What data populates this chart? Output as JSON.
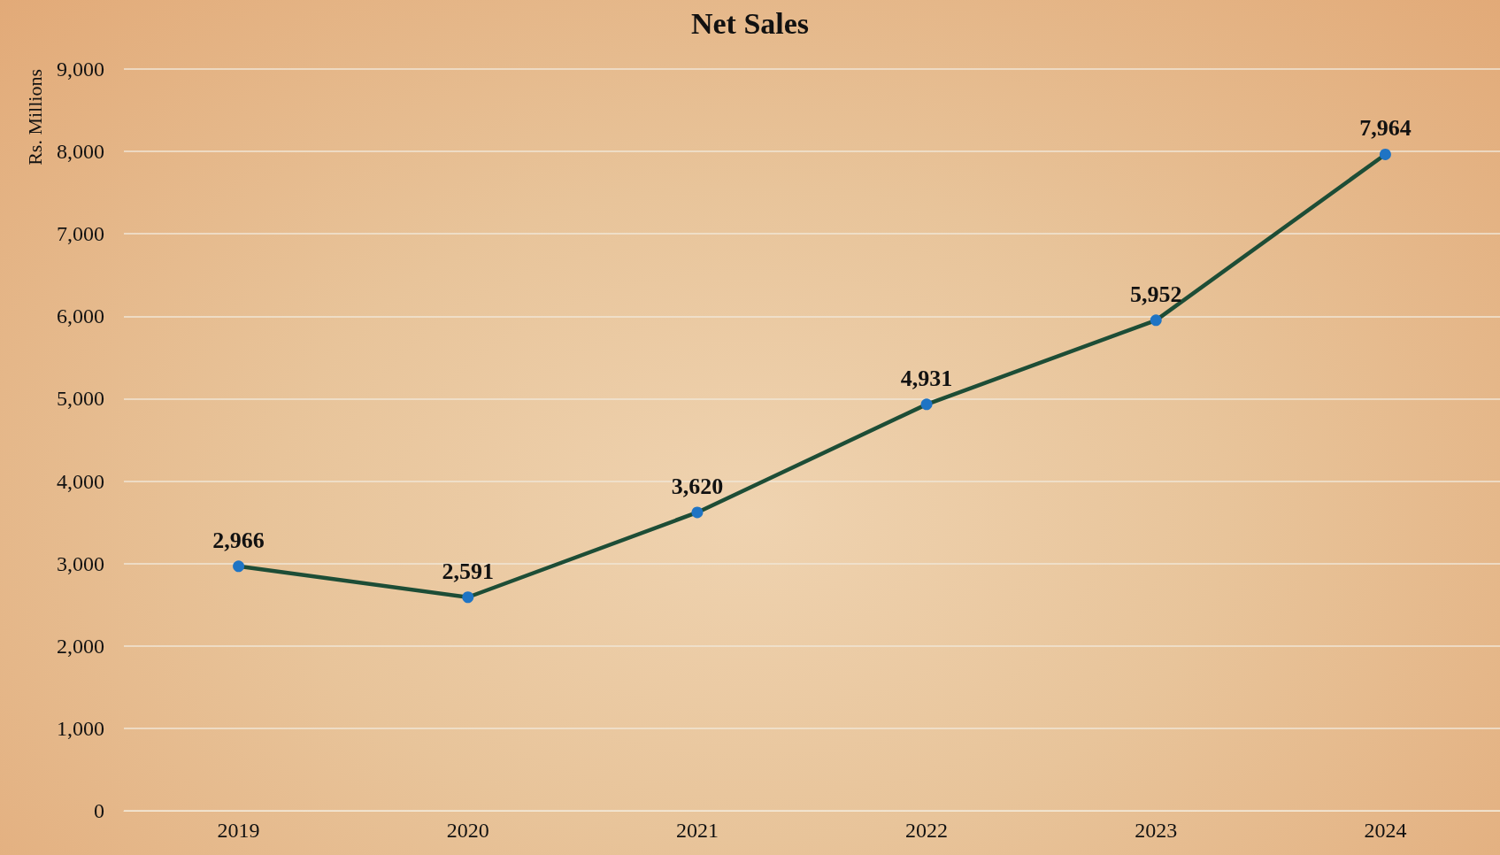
{
  "chart_data": {
    "type": "line",
    "title": "Net Sales",
    "ylabel": "Rs. Millions",
    "categories": [
      "2019",
      "2020",
      "2021",
      "2022",
      "2023",
      "2024"
    ],
    "series": [
      {
        "color": "#1d4d36",
        "colors": [
          "#1f74c4",
          "#1f74c4",
          "#1f74c4",
          "#1f74c4",
          "#1f74c4",
          "#1f74c4"
        ],
        "values": [
          2966,
          2591,
          3620,
          4931,
          5952,
          7964
        ],
        "value_labels": [
          "2,966",
          "2,591",
          "3,620",
          "4,931",
          "5,952",
          "7,964"
        ]
      }
    ],
    "ylim": [
      0,
      9000
    ],
    "yticks": [
      {
        "value": 0,
        "label": "0"
      },
      {
        "value": 1000,
        "label": "1,000"
      },
      {
        "value": 2000,
        "label": "2,000"
      },
      {
        "value": 3000,
        "label": "3,000"
      },
      {
        "value": 4000,
        "label": "4,000"
      },
      {
        "value": 5000,
        "label": "5,000"
      },
      {
        "value": 6000,
        "label": "6,000"
      },
      {
        "value": 7000,
        "label": "7,000"
      },
      {
        "value": 8000,
        "label": "8,000"
      },
      {
        "value": 9000,
        "label": "9,000"
      }
    ],
    "grid": "y",
    "marker": "circle",
    "line_style": "solid"
  }
}
